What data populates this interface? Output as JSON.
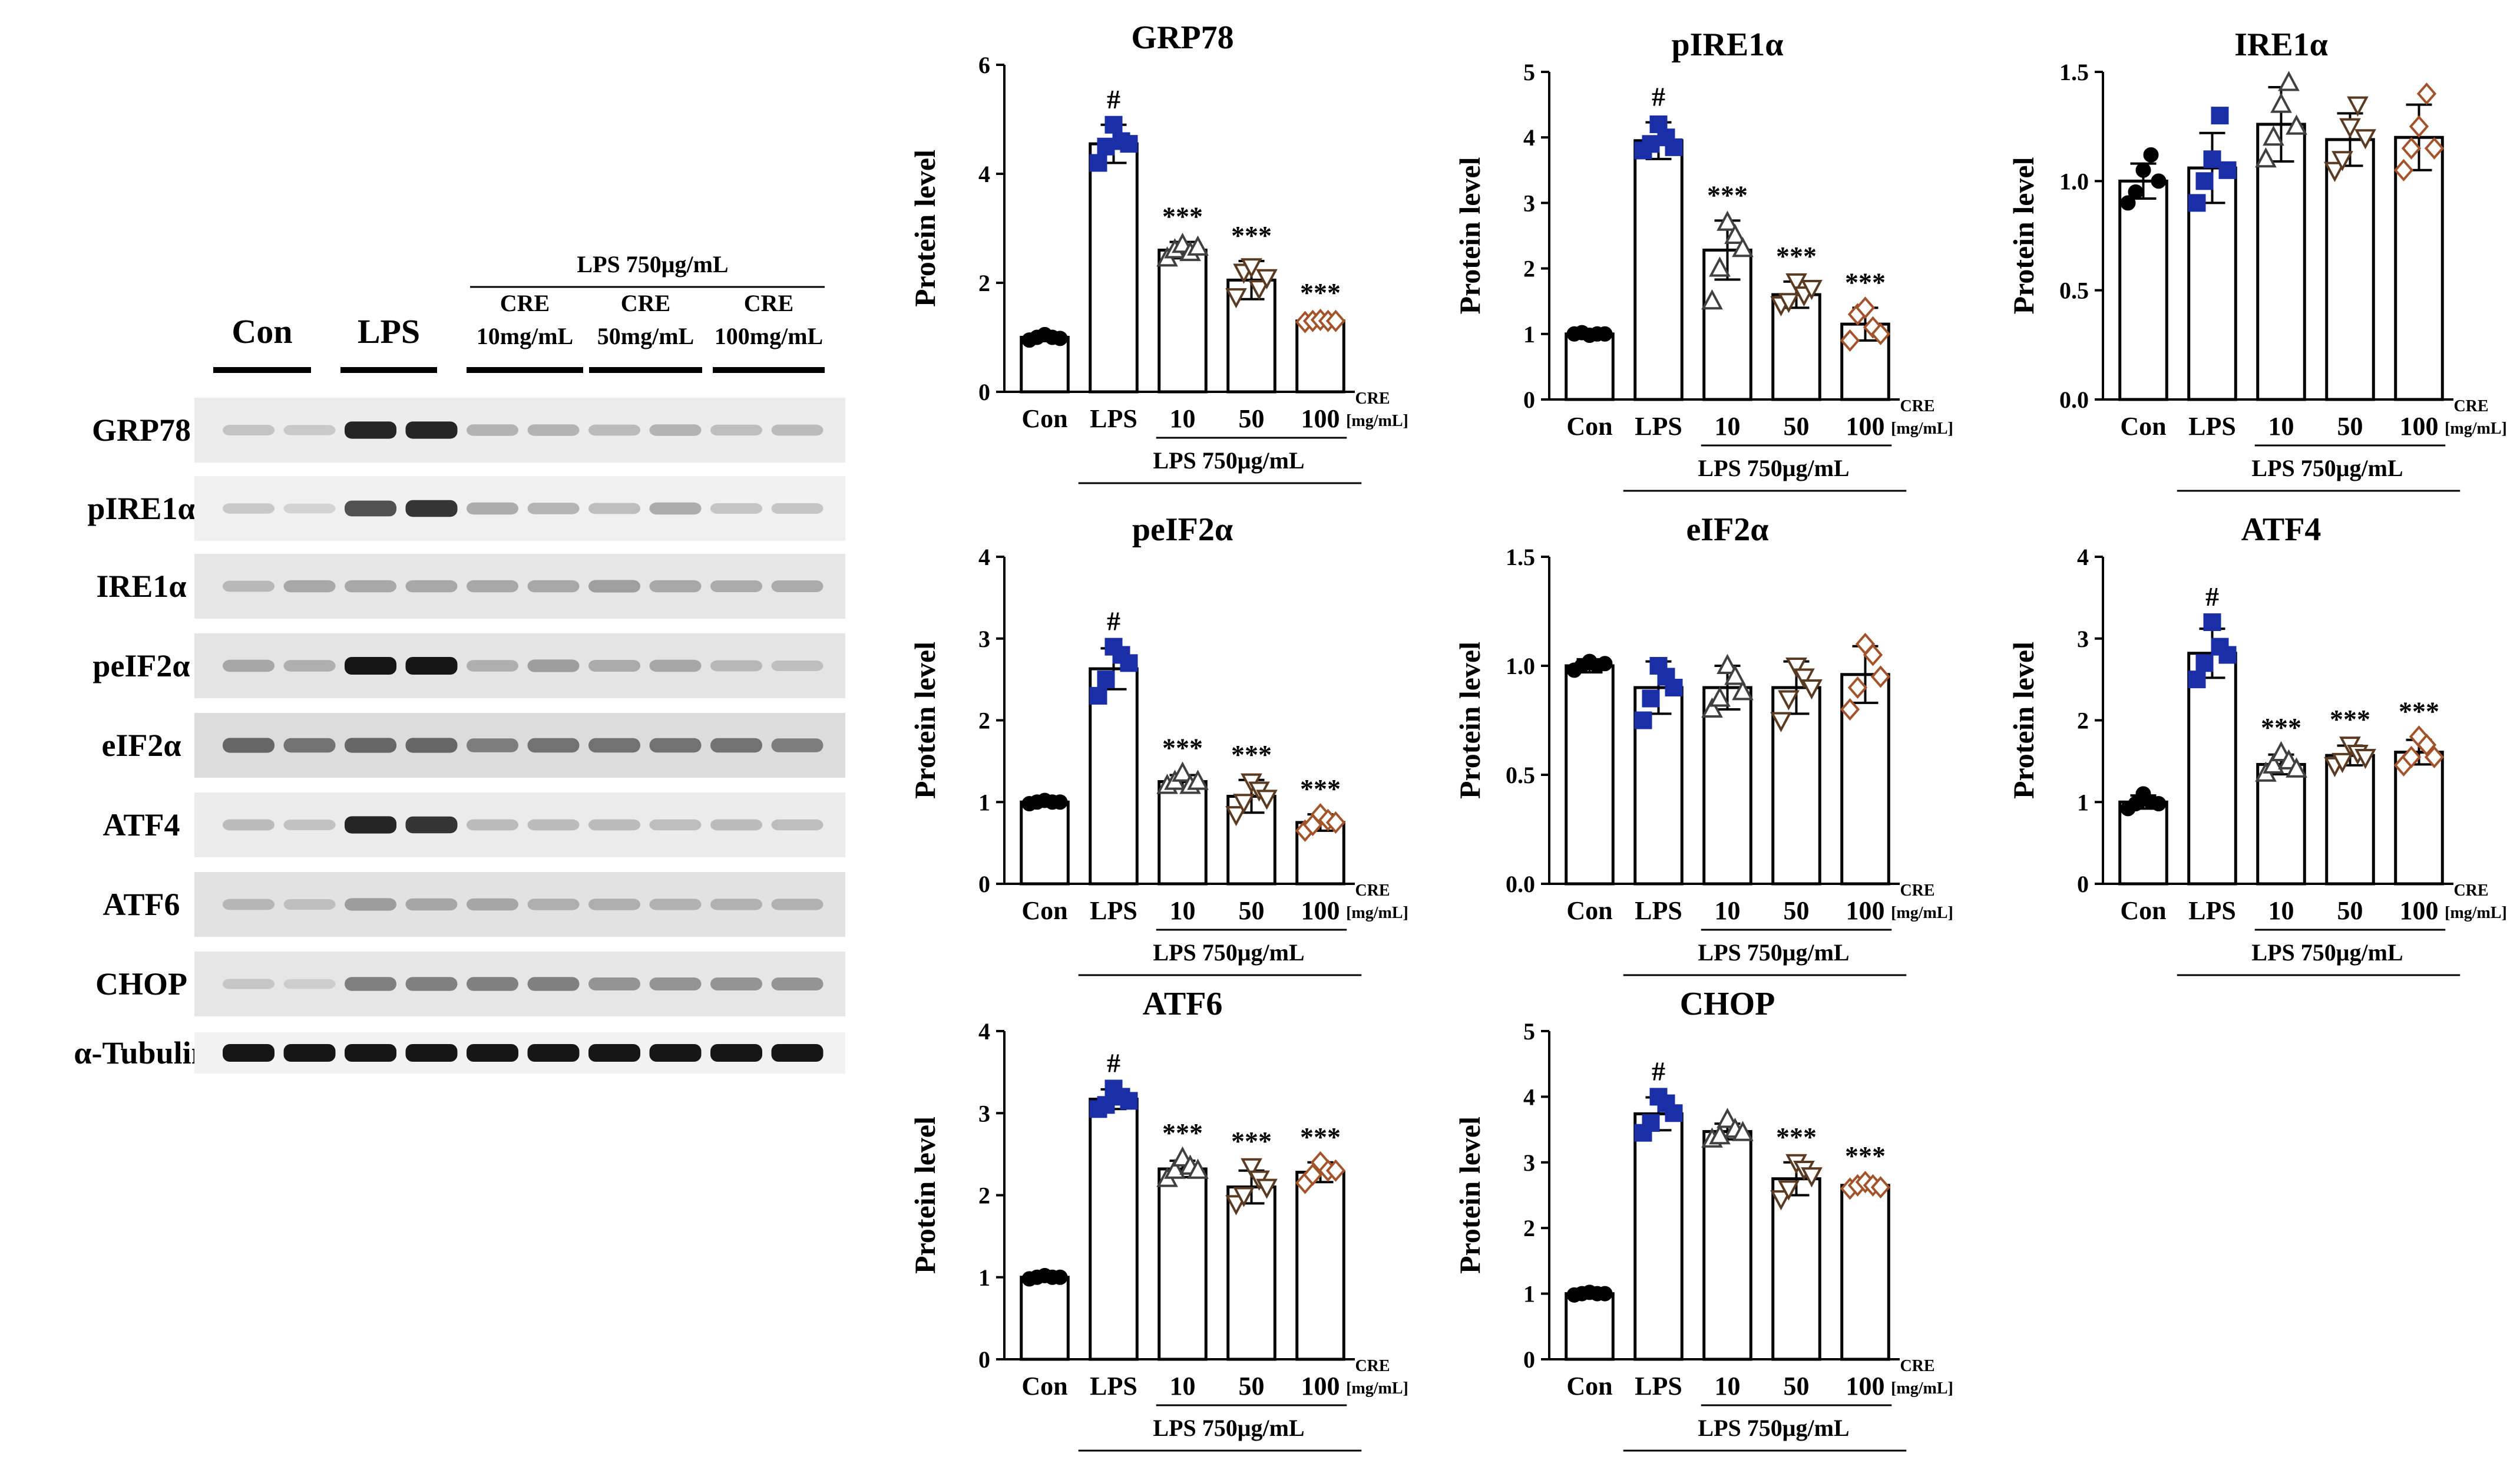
{
  "blot": {
    "header_lps": "LPS 750μg/mL",
    "groups": [
      {
        "line1": "",
        "line2": "Con"
      },
      {
        "line1": "",
        "line2": "LPS"
      },
      {
        "line1": "CRE",
        "line2": "10mg/mL"
      },
      {
        "line1": "CRE",
        "line2": "50mg/mL"
      },
      {
        "line1": "CRE",
        "line2": "100mg/mL"
      }
    ],
    "rows": [
      {
        "label": "GRP78",
        "bg": "#ececec",
        "bands": [
          0.25,
          0.2,
          0.95,
          0.95,
          0.35,
          0.35,
          0.3,
          0.35,
          0.28,
          0.3
        ]
      },
      {
        "label": "pIRE1α",
        "bg": "#f0f0f0",
        "bands": [
          0.22,
          0.15,
          0.8,
          0.9,
          0.4,
          0.35,
          0.3,
          0.4,
          0.25,
          0.25
        ]
      },
      {
        "label": "IRE1α",
        "bg": "#e6e6e6",
        "bands": [
          0.3,
          0.4,
          0.4,
          0.4,
          0.4,
          0.4,
          0.45,
          0.4,
          0.38,
          0.38
        ]
      },
      {
        "label": "peIF2α",
        "bg": "#e4e4e4",
        "bands": [
          0.4,
          0.35,
          1.0,
          1.0,
          0.35,
          0.45,
          0.38,
          0.4,
          0.3,
          0.25
        ]
      },
      {
        "label": "eIF2α",
        "bg": "#dcdcdc",
        "bands": [
          0.7,
          0.65,
          0.7,
          0.7,
          0.6,
          0.65,
          0.65,
          0.65,
          0.65,
          0.6
        ]
      },
      {
        "label": "ATF4",
        "bg": "#ebebeb",
        "bands": [
          0.3,
          0.25,
          0.95,
          0.9,
          0.3,
          0.3,
          0.3,
          0.28,
          0.3,
          0.28
        ]
      },
      {
        "label": "ATF6",
        "bg": "#e2e2e2",
        "bands": [
          0.3,
          0.25,
          0.45,
          0.4,
          0.4,
          0.35,
          0.35,
          0.33,
          0.33,
          0.33
        ]
      },
      {
        "label": "CHOP",
        "bg": "#e6e6e6",
        "bands": [
          0.2,
          0.15,
          0.6,
          0.6,
          0.6,
          0.6,
          0.5,
          0.5,
          0.5,
          0.5
        ]
      },
      {
        "label": "α-Tubulin",
        "bg": "#f2f2f2",
        "bands": [
          1.0,
          1.0,
          1.0,
          1.0,
          1.0,
          1.0,
          1.0,
          1.0,
          1.0,
          1.0
        ]
      }
    ]
  },
  "shared": {
    "ylabel": "Protein level",
    "categories": [
      "Con",
      "LPS",
      "10",
      "50",
      "100"
    ],
    "cre_label": "CRE",
    "unit_label": "[mg/mL]",
    "lps_label": "LPS 750μg/mL"
  },
  "colors": {
    "con": "#000000",
    "lps": "#1a2ea8",
    "cre10": "#404040",
    "cre50": "#5a3b22",
    "cre100": "#a3532a"
  },
  "chart_data": [
    {
      "type": "bar",
      "title": "GRP78",
      "ylabel": "Protein level",
      "categories": [
        "Con",
        "LPS",
        "10",
        "50",
        "100"
      ],
      "ylim": [
        0,
        6
      ],
      "yticks": [
        "0",
        "2",
        "4",
        "6"
      ],
      "values": [
        1.0,
        4.55,
        2.6,
        2.05,
        1.3
      ],
      "errors": [
        0.07,
        0.35,
        0.15,
        0.35,
        0.05
      ],
      "points": [
        [
          0.95,
          1.0,
          1.05,
          1.0,
          0.98
        ],
        [
          4.2,
          4.5,
          4.9,
          4.6,
          4.55
        ],
        [
          2.45,
          2.6,
          2.7,
          2.55,
          2.65
        ],
        [
          1.75,
          2.2,
          2.3,
          1.9,
          2.1
        ],
        [
          1.28,
          1.3,
          1.32,
          1.3,
          1.3
        ]
      ],
      "significance": [
        "",
        "#",
        "***",
        "***",
        "***"
      ]
    },
    {
      "type": "bar",
      "title": "pIRE1α",
      "ylabel": "Protein level",
      "categories": [
        "Con",
        "LPS",
        "10",
        "50",
        "100"
      ],
      "ylim": [
        0,
        5
      ],
      "yticks": [
        "0",
        "1",
        "2",
        "3",
        "4",
        "5"
      ],
      "values": [
        1.0,
        3.95,
        2.28,
        1.6,
        1.15
      ],
      "errors": [
        0.03,
        0.28,
        0.45,
        0.2,
        0.25
      ],
      "points": [
        [
          1.0,
          1.02,
          0.98,
          1.0,
          1.0
        ],
        [
          3.8,
          3.9,
          4.2,
          4.0,
          3.85
        ],
        [
          1.5,
          2.0,
          2.7,
          2.5,
          2.3
        ],
        [
          1.45,
          1.5,
          1.8,
          1.6,
          1.7
        ],
        [
          0.9,
          1.3,
          1.4,
          1.1,
          1.0
        ]
      ],
      "significance": [
        "",
        "#",
        "***",
        "***",
        "***"
      ]
    },
    {
      "type": "bar",
      "title": "IRE1α",
      "ylabel": "Protein level",
      "categories": [
        "Con",
        "LPS",
        "10",
        "50",
        "100"
      ],
      "ylim": [
        0,
        1.5
      ],
      "yticks": [
        "0.0",
        "0.5",
        "1.0",
        "1.5"
      ],
      "values": [
        1.0,
        1.06,
        1.26,
        1.19,
        1.2
      ],
      "errors": [
        0.08,
        0.16,
        0.17,
        0.12,
        0.15
      ],
      "points": [
        [
          0.9,
          0.95,
          1.05,
          1.12,
          1.0
        ],
        [
          0.9,
          1.0,
          1.1,
          1.3,
          1.05
        ],
        [
          1.1,
          1.2,
          1.35,
          1.45,
          1.25
        ],
        [
          1.05,
          1.1,
          1.25,
          1.35,
          1.2
        ],
        [
          1.05,
          1.15,
          1.25,
          1.4,
          1.15
        ]
      ],
      "significance": [
        "",
        "",
        "",
        "",
        ""
      ]
    },
    {
      "type": "bar",
      "title": "peIF2α",
      "ylabel": "Protein level",
      "categories": [
        "Con",
        "LPS",
        "10",
        "50",
        "100"
      ],
      "ylim": [
        0,
        4
      ],
      "yticks": [
        "0",
        "1",
        "2",
        "3",
        "4"
      ],
      "values": [
        1.0,
        2.63,
        1.25,
        1.07,
        0.75
      ],
      "errors": [
        0.05,
        0.25,
        0.08,
        0.2,
        0.1
      ],
      "points": [
        [
          0.98,
          1.0,
          1.02,
          1.0,
          1.0
        ],
        [
          2.3,
          2.5,
          2.9,
          2.8,
          2.7
        ],
        [
          1.2,
          1.25,
          1.35,
          1.2,
          1.25
        ],
        [
          0.85,
          1.0,
          1.25,
          1.15,
          1.05
        ],
        [
          0.65,
          0.72,
          0.85,
          0.78,
          0.75
        ]
      ],
      "significance": [
        "",
        "#",
        "***",
        "***",
        "***"
      ]
    },
    {
      "type": "bar",
      "title": "eIF2α",
      "ylabel": "Protein level",
      "categories": [
        "Con",
        "LPS",
        "10",
        "50",
        "100"
      ],
      "ylim": [
        0,
        1.5
      ],
      "yticks": [
        "0.0",
        "0.5",
        "1.0",
        "1.5"
      ],
      "values": [
        1.0,
        0.9,
        0.9,
        0.9,
        0.96
      ],
      "errors": [
        0.03,
        0.12,
        0.1,
        0.12,
        0.13
      ],
      "points": [
        [
          0.98,
          1.0,
          1.02,
          1.0,
          1.01
        ],
        [
          0.75,
          0.85,
          1.0,
          0.95,
          0.9
        ],
        [
          0.8,
          0.85,
          1.0,
          0.95,
          0.88
        ],
        [
          0.75,
          0.85,
          1.0,
          0.95,
          0.9
        ],
        [
          0.8,
          0.9,
          1.1,
          1.05,
          0.95
        ]
      ],
      "significance": [
        "",
        "",
        "",
        "",
        ""
      ]
    },
    {
      "type": "bar",
      "title": "ATF4",
      "ylabel": "Protein level",
      "categories": [
        "Con",
        "LPS",
        "10",
        "50",
        "100"
      ],
      "ylim": [
        0,
        4
      ],
      "yticks": [
        "0",
        "1",
        "2",
        "3",
        "4"
      ],
      "values": [
        1.0,
        2.82,
        1.46,
        1.57,
        1.61
      ],
      "errors": [
        0.08,
        0.3,
        0.12,
        0.12,
        0.15
      ],
      "points": [
        [
          0.92,
          0.98,
          1.1,
          1.0,
          0.98
        ],
        [
          2.5,
          2.7,
          3.2,
          2.9,
          2.8
        ],
        [
          1.35,
          1.45,
          1.6,
          1.5,
          1.4
        ],
        [
          1.45,
          1.5,
          1.7,
          1.6,
          1.55
        ],
        [
          1.45,
          1.55,
          1.8,
          1.7,
          1.55
        ]
      ],
      "significance": [
        "",
        "#",
        "***",
        "***",
        "***"
      ]
    },
    {
      "type": "bar",
      "title": "ATF6",
      "ylabel": "Protein level",
      "categories": [
        "Con",
        "LPS",
        "10",
        "50",
        "100"
      ],
      "ylim": [
        0,
        4
      ],
      "yticks": [
        "0",
        "1",
        "2",
        "3",
        "4"
      ],
      "values": [
        1.0,
        3.17,
        2.32,
        2.1,
        2.28
      ],
      "errors": [
        0.05,
        0.12,
        0.1,
        0.2,
        0.12
      ],
      "points": [
        [
          0.98,
          1.0,
          1.02,
          1.0,
          1.0
        ],
        [
          3.05,
          3.1,
          3.3,
          3.2,
          3.15
        ],
        [
          2.2,
          2.3,
          2.45,
          2.35,
          2.3
        ],
        [
          1.9,
          2.0,
          2.35,
          2.2,
          2.1
        ],
        [
          2.15,
          2.25,
          2.4,
          2.3,
          2.3
        ]
      ],
      "significance": [
        "",
        "#",
        "***",
        "***",
        "***"
      ]
    },
    {
      "type": "bar",
      "title": "CHOP",
      "ylabel": "Protein level",
      "categories": [
        "Con",
        "LPS",
        "10",
        "50",
        "100"
      ],
      "ylim": [
        0,
        5
      ],
      "yticks": [
        "0",
        "1",
        "2",
        "3",
        "4",
        "5"
      ],
      "values": [
        1.0,
        3.74,
        3.47,
        2.75,
        2.65
      ],
      "errors": [
        0.04,
        0.25,
        0.12,
        0.25,
        0.06
      ],
      "points": [
        [
          0.98,
          1.0,
          1.02,
          1.0,
          1.0
        ],
        [
          3.45,
          3.6,
          4.0,
          3.9,
          3.75
        ],
        [
          3.35,
          3.4,
          3.65,
          3.5,
          3.45
        ],
        [
          2.45,
          2.6,
          3.0,
          2.9,
          2.8
        ],
        [
          2.6,
          2.65,
          2.7,
          2.65,
          2.62
        ]
      ],
      "significance": [
        "",
        "#",
        "",
        "***",
        "***"
      ]
    }
  ]
}
